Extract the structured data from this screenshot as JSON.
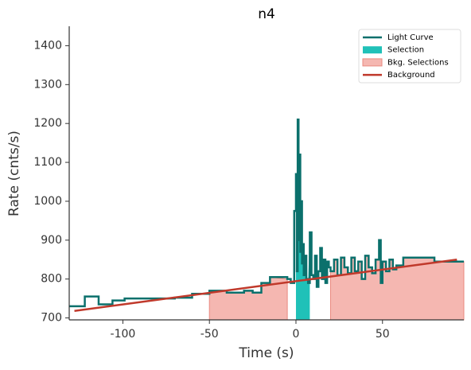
{
  "chart_data": {
    "type": "lightcurve",
    "title": "n4",
    "xlabel": "Time (s)",
    "ylabel": "Rate (cnts/s)",
    "xlim": [
      -131,
      97
    ],
    "ylim": [
      695,
      1450
    ],
    "xticks": [
      -100,
      -50,
      0,
      50
    ],
    "yticks": [
      700,
      800,
      900,
      1000,
      1100,
      1200,
      1300,
      1400
    ],
    "legend": "upper right",
    "series": [
      {
        "name": "Light Curve",
        "color": "#0b706c",
        "x": [
          -132,
          -122,
          -114,
          -106,
          -99,
          -70,
          -60,
          -50,
          -40,
          -30,
          -25,
          -20,
          -15,
          -5,
          -3,
          -1,
          0,
          0.5,
          1,
          1.5,
          2,
          2.5,
          3,
          3.5,
          4,
          4.5,
          5,
          5.5,
          6,
          7,
          8,
          9,
          10,
          11,
          12,
          13,
          14,
          15,
          16,
          17,
          18,
          19,
          20,
          22,
          24,
          26,
          28,
          30,
          32,
          34,
          36,
          38,
          40,
          42,
          44,
          46,
          48,
          49,
          50,
          52,
          54,
          56,
          58,
          60,
          62,
          80
        ],
        "values": [
          730,
          755,
          735,
          745,
          750,
          752,
          762,
          770,
          765,
          770,
          765,
          790,
          805,
          800,
          790,
          975,
          1070,
          820,
          1210,
          900,
          1120,
          870,
          1000,
          840,
          890,
          810,
          830,
          860,
          800,
          790,
          920,
          810,
          800,
          860,
          780,
          820,
          880,
          800,
          850,
          790,
          845,
          830,
          820,
          850,
          810,
          855,
          830,
          815,
          855,
          820,
          845,
          800,
          860,
          830,
          815,
          850,
          900,
          790,
          845,
          820,
          850,
          825,
          835,
          835,
          855,
          845
        ]
      },
      {
        "name": "Selection",
        "color": "#20c1b8",
        "intervals": [
          [
            0,
            8
          ]
        ]
      },
      {
        "name": "Bkg. Selections",
        "color": "#f5b7b1",
        "intervals": [
          [
            -50,
            -5
          ],
          [
            20,
            97
          ]
        ]
      },
      {
        "name": "Background",
        "color": "#c0392b",
        "x": [
          -128,
          93
        ],
        "values": [
          718,
          850
        ]
      }
    ]
  }
}
